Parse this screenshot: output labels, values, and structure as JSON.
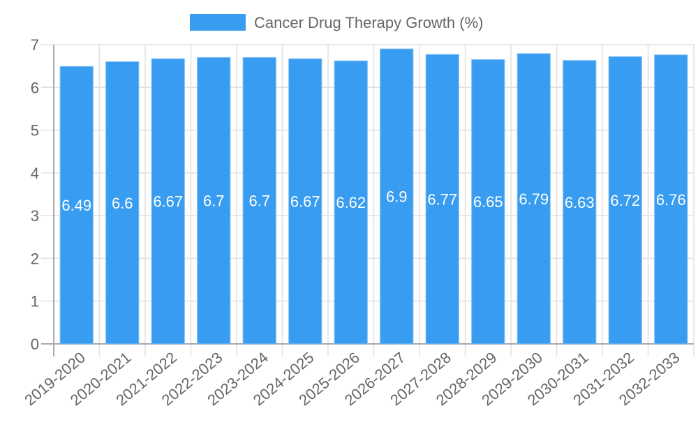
{
  "chart_data": {
    "type": "bar",
    "title": "",
    "xlabel": "",
    "ylabel": "",
    "ylim": [
      0,
      7
    ],
    "yticks": [
      0,
      1,
      2,
      3,
      4,
      5,
      6,
      7
    ],
    "grid": true,
    "legend_position": "top-center",
    "categories": [
      "2019-2020",
      "2020-2021",
      "2021-2022",
      "2022-2023",
      "2023-2024",
      "2024-2025",
      "2025-2026",
      "2026-2027",
      "2027-2028",
      "2028-2029",
      "2029-2030",
      "2030-2031",
      "2031-2032",
      "2032-2033"
    ],
    "series": [
      {
        "name": "Cancer Drug Therapy Growth (%)",
        "color": "#389cf0",
        "values": [
          6.49,
          6.6,
          6.67,
          6.7,
          6.7,
          6.67,
          6.62,
          6.9,
          6.77,
          6.65,
          6.79,
          6.63,
          6.72,
          6.76
        ]
      }
    ]
  }
}
